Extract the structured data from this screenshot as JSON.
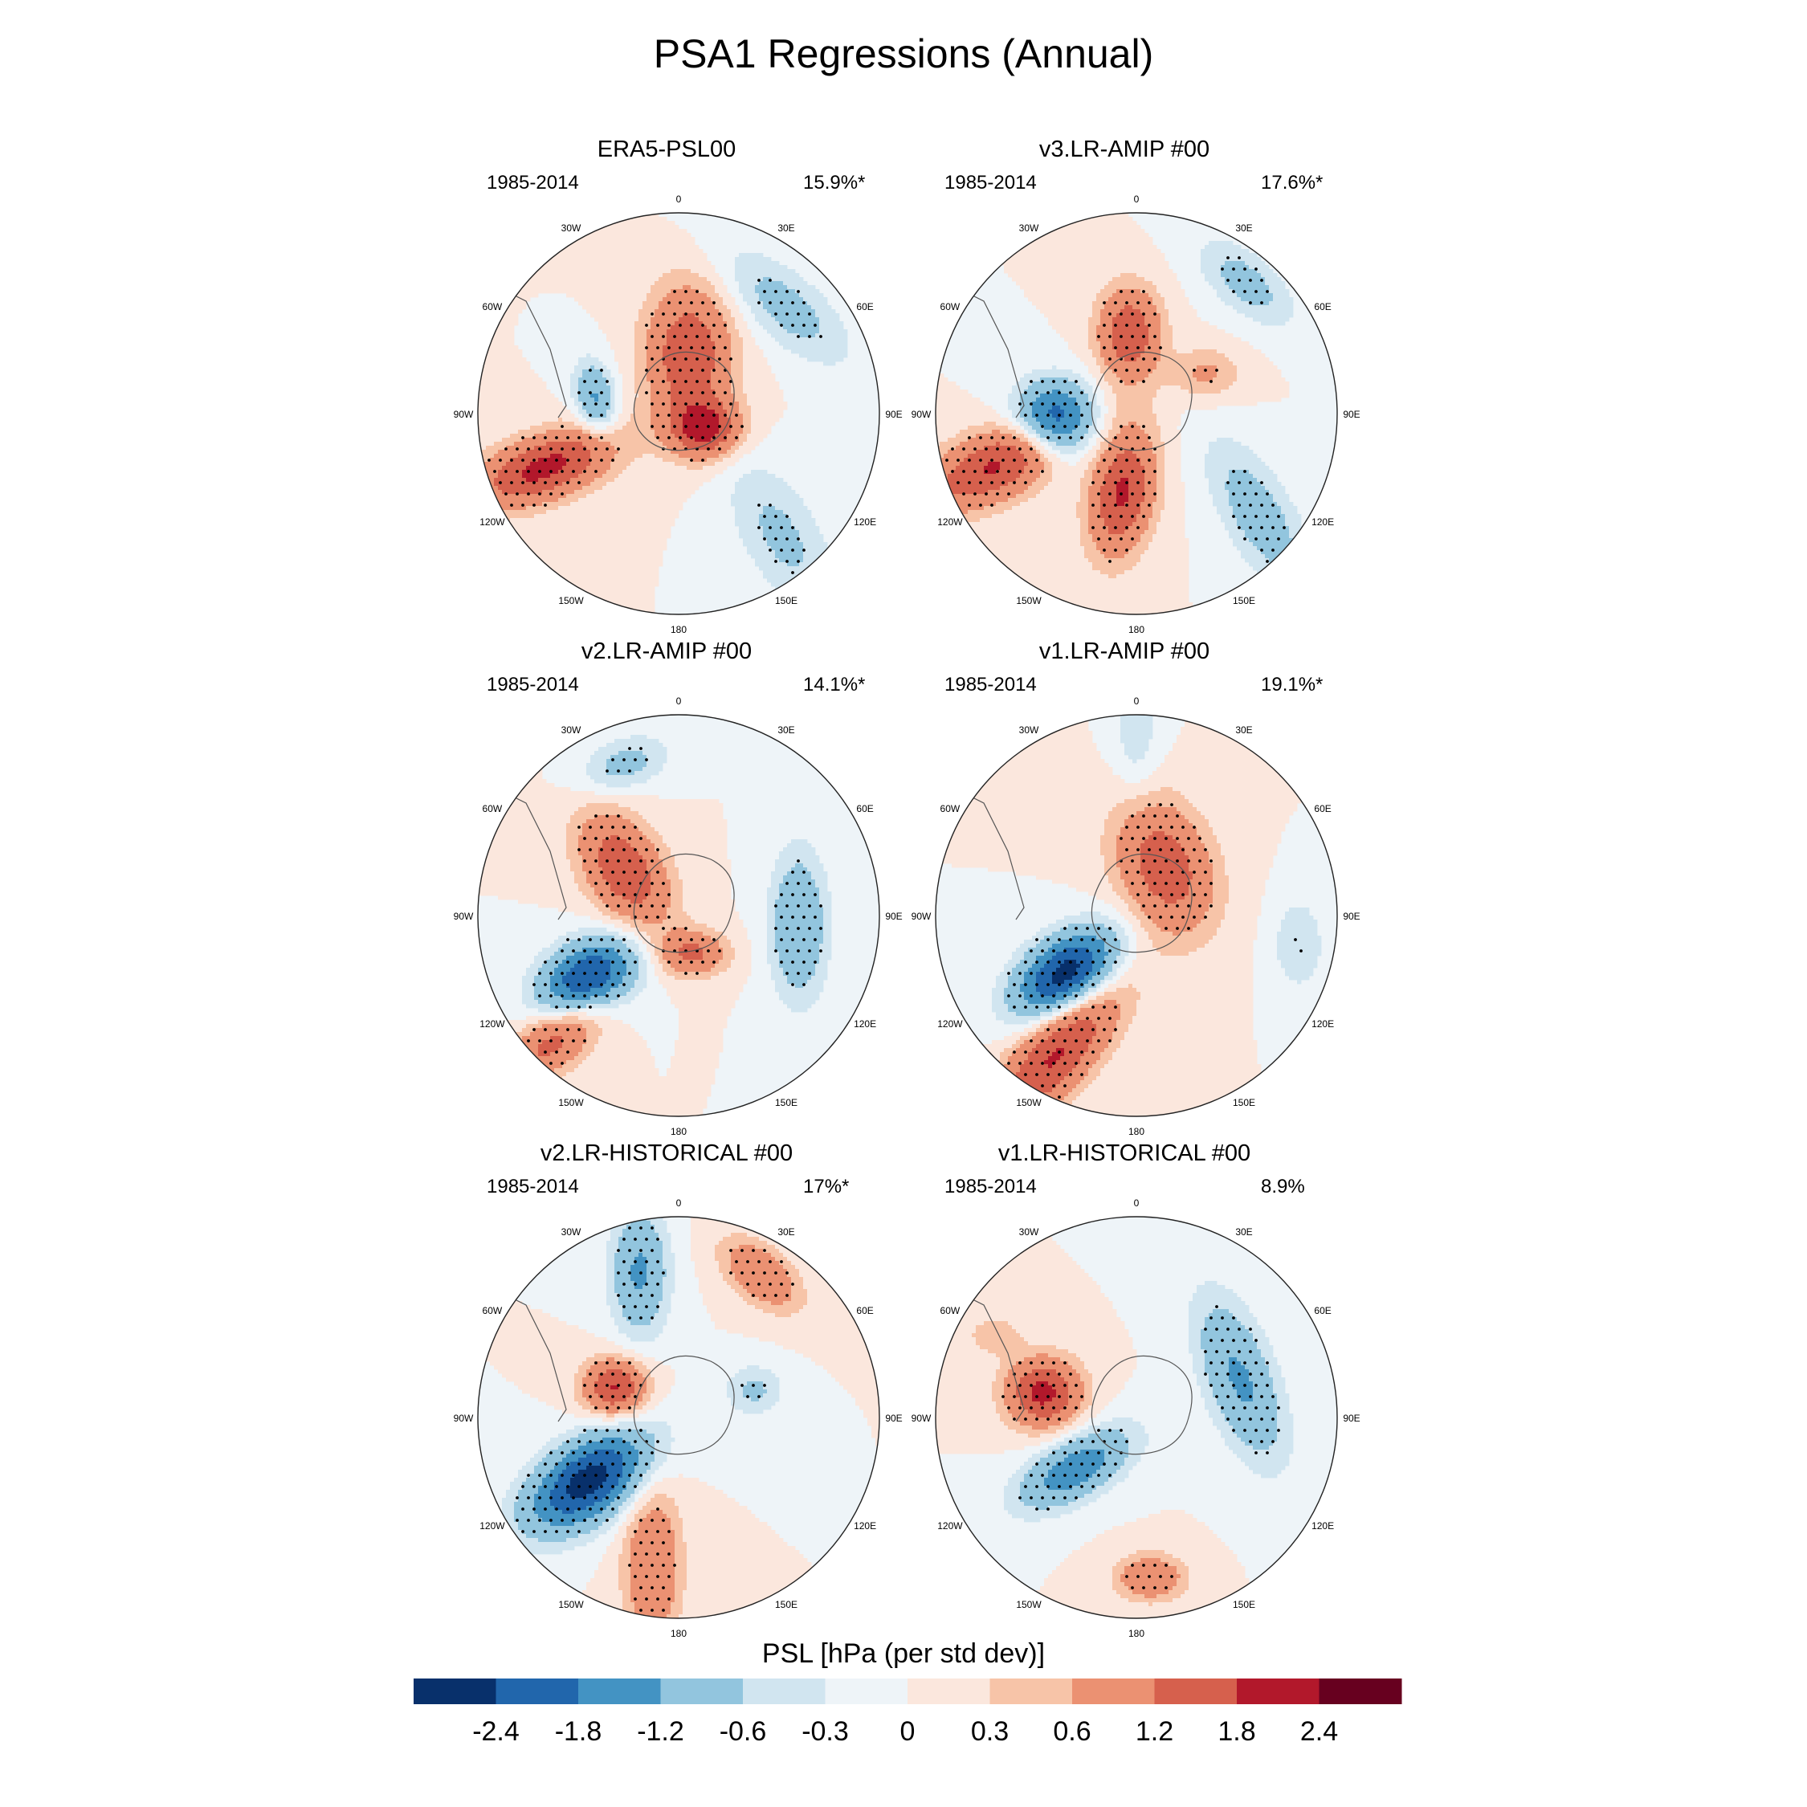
{
  "title": "PSA1 Regressions (Annual)",
  "colors": [
    "#08306b",
    "#2166ac",
    "#4393c3",
    "#92c5de",
    "#d1e5f0",
    "#eef4f8",
    "#fbe7dd",
    "#f7c4a8",
    "#eb9172",
    "#d6604d",
    "#b2182b",
    "#67001f"
  ],
  "lon_labels": [
    "0",
    "30E",
    "60E",
    "90E",
    "120E",
    "150E",
    "180",
    "150W",
    "120W",
    "90W",
    "60W",
    "30W"
  ],
  "panels": [
    {
      "title": "ERA5-PSL00",
      "years": "1985-2014",
      "pct": "15.9%*",
      "anoms": [
        {
          "lon": -112,
          "r": 0.72,
          "amp": 2.0,
          "a": 0.26,
          "b": 0.11,
          "orient": -20,
          "dots": true
        },
        {
          "lon": -80,
          "r": 0.42,
          "amp": -1.3,
          "a": 0.13,
          "b": 0.07,
          "orient": 80,
          "dots": true
        },
        {
          "lon": 10,
          "r": 0.3,
          "amp": 1.7,
          "a": 0.24,
          "b": 0.15,
          "orient": 90,
          "dots": true
        },
        {
          "lon": 120,
          "r": 0.15,
          "amp": 1.9,
          "a": 0.12,
          "b": 0.1,
          "orient": 0,
          "dots": true
        },
        {
          "lon": 45,
          "r": 0.75,
          "amp": -0.8,
          "a": 0.28,
          "b": 0.12,
          "orient": 40,
          "dots": true
        },
        {
          "lon": 140,
          "r": 0.8,
          "amp": -0.7,
          "a": 0.3,
          "b": 0.14,
          "orient": 60,
          "dots": true
        }
      ]
    },
    {
      "title": "v3.LR-AMIP  #00",
      "years": "1985-2014",
      "pct": "17.6%*",
      "anoms": [
        {
          "lon": -110,
          "r": 0.72,
          "amp": 1.9,
          "a": 0.3,
          "b": 0.12,
          "orient": -25,
          "dots": true
        },
        {
          "lon": -95,
          "r": 0.4,
          "amp": -2.6,
          "a": 0.14,
          "b": 0.13,
          "orient": 0,
          "dots": true
        },
        {
          "lon": -170,
          "r": 0.4,
          "amp": 1.9,
          "a": 0.22,
          "b": 0.11,
          "orient": 100,
          "dots": true
        },
        {
          "lon": -5,
          "r": 0.4,
          "amp": 1.7,
          "a": 0.16,
          "b": 0.11,
          "orient": 90,
          "dots": true
        },
        {
          "lon": 60,
          "r": 0.4,
          "amp": 0.7,
          "a": 0.12,
          "b": 0.09,
          "orient": 0,
          "dots": true
        },
        {
          "lon": 130,
          "r": 0.8,
          "amp": -0.9,
          "a": 0.3,
          "b": 0.12,
          "orient": 60,
          "dots": true
        },
        {
          "lon": 40,
          "r": 0.85,
          "amp": -0.8,
          "a": 0.2,
          "b": 0.1,
          "orient": 40,
          "dots": true
        }
      ]
    },
    {
      "title": "v2.LR-AMIP  #00",
      "years": "1985-2014",
      "pct": "14.1%*",
      "anoms": [
        {
          "lon": -125,
          "r": 0.55,
          "amp": -2.6,
          "a": 0.18,
          "b": 0.12,
          "orient": -30,
          "dots": true
        },
        {
          "lon": -50,
          "r": 0.35,
          "amp": 1.7,
          "a": 0.22,
          "b": 0.13,
          "orient": 60,
          "dots": true
        },
        {
          "lon": -135,
          "r": 0.85,
          "amp": 1.5,
          "a": 0.22,
          "b": 0.1,
          "orient": -40,
          "dots": true
        },
        {
          "lon": -20,
          "r": 0.8,
          "amp": -0.8,
          "a": 0.16,
          "b": 0.09,
          "orient": -20,
          "dots": true
        },
        {
          "lon": 95,
          "r": 0.6,
          "amp": -1.2,
          "a": 0.26,
          "b": 0.1,
          "orient": 90,
          "dots": true
        },
        {
          "lon": 160,
          "r": 0.2,
          "amp": 1.3,
          "a": 0.12,
          "b": 0.08,
          "orient": 0,
          "dots": true
        }
      ]
    },
    {
      "title": "v1.LR-AMIP  #00",
      "years": "1985-2014",
      "pct": "19.1%*",
      "anoms": [
        {
          "lon": -130,
          "r": 0.45,
          "amp": -2.8,
          "a": 0.2,
          "b": 0.12,
          "orient": -35,
          "dots": true
        },
        {
          "lon": -150,
          "r": 0.78,
          "amp": 1.9,
          "a": 0.32,
          "b": 0.12,
          "orient": -50,
          "dots": true
        },
        {
          "lon": 30,
          "r": 0.28,
          "amp": 1.6,
          "a": 0.24,
          "b": 0.16,
          "orient": 70,
          "dots": true
        },
        {
          "lon": 100,
          "r": 0.82,
          "amp": -0.6,
          "a": 0.16,
          "b": 0.09,
          "orient": 90,
          "dots": true
        },
        {
          "lon": 0,
          "r": 0.9,
          "amp": -0.5,
          "a": 0.22,
          "b": 0.08,
          "orient": 90,
          "dots": true
        }
      ]
    },
    {
      "title": "v2.LR-HISTORICAL  #00",
      "years": "1985-2014",
      "pct": "17%*",
      "anoms": [
        {
          "lon": -125,
          "r": 0.55,
          "amp": -2.7,
          "a": 0.24,
          "b": 0.13,
          "orient": -35,
          "dots": true
        },
        {
          "lon": -65,
          "r": 0.35,
          "amp": 1.9,
          "a": 0.11,
          "b": 0.1,
          "orient": 0,
          "dots": true
        },
        {
          "lon": -15,
          "r": 0.75,
          "amp": -1.3,
          "a": 0.22,
          "b": 0.1,
          "orient": 90,
          "dots": true
        },
        {
          "lon": 30,
          "r": 0.82,
          "amp": 1.2,
          "a": 0.16,
          "b": 0.09,
          "orient": 40,
          "dots": true
        },
        {
          "lon": -170,
          "r": 0.75,
          "amp": 1.2,
          "a": 0.28,
          "b": 0.1,
          "orient": 90,
          "dots": true
        },
        {
          "lon": 70,
          "r": 0.4,
          "amp": -0.7,
          "a": 0.1,
          "b": 0.09,
          "orient": 0,
          "dots": true
        }
      ]
    },
    {
      "title": "v1.LR-HISTORICAL  #00",
      "years": "1985-2014",
      "pct": "8.9%",
      "anoms": [
        {
          "lon": -75,
          "r": 0.48,
          "amp": 2.0,
          "a": 0.13,
          "b": 0.12,
          "orient": 0,
          "dots": true
        },
        {
          "lon": -130,
          "r": 0.4,
          "amp": -1.6,
          "a": 0.22,
          "b": 0.1,
          "orient": -30,
          "dots": true
        },
        {
          "lon": 70,
          "r": 0.55,
          "amp": -1.3,
          "a": 0.3,
          "b": 0.12,
          "orient": 70,
          "dots": true
        },
        {
          "lon": 175,
          "r": 0.8,
          "amp": 1.2,
          "a": 0.12,
          "b": 0.08,
          "orient": 0,
          "dots": true
        },
        {
          "lon": -60,
          "r": 0.82,
          "amp": 0.5,
          "a": 0.1,
          "b": 0.07,
          "orient": 0,
          "dots": true
        }
      ]
    }
  ],
  "colorbar": {
    "title": "PSL [hPa (per std dev)]",
    "labels": [
      "-2.4",
      "-1.8",
      "-1.2",
      "-0.6",
      "-0.3",
      "0",
      "0.3",
      "0.6",
      "1.2",
      "1.8",
      "2.4"
    ],
    "levels": [
      -2.4,
      -1.8,
      -1.2,
      -0.6,
      -0.3,
      0,
      0.3,
      0.6,
      1.2,
      1.8,
      2.4
    ]
  }
}
